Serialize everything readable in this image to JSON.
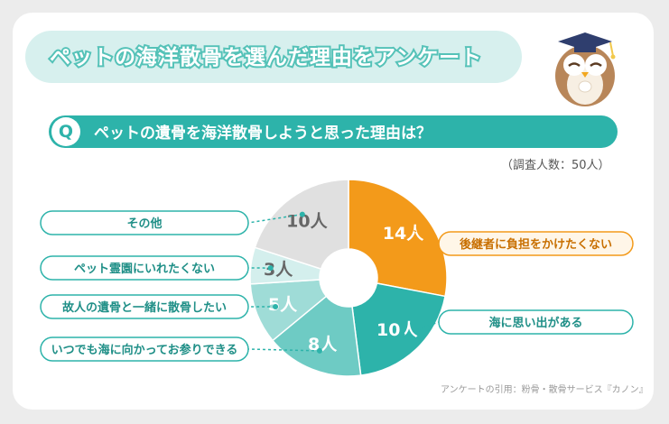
{
  "header": {
    "title": "ペットの海洋散骨を選んだ理由をアンケート"
  },
  "question": {
    "marker": "Q",
    "text": "ペットの遺骨を海洋散骨しようと思った理由は？"
  },
  "sample_note": "（調査人数：50人）",
  "source_note": "アンケートの引用：粉骨・散骨サービス『カノン』",
  "chart_data": {
    "type": "pie",
    "donut": true,
    "unit": "人",
    "total": 50,
    "slices": [
      {
        "label": "後継者に負担をかけたくない",
        "value": 14,
        "value_text": "14人",
        "color": "#f39a1a"
      },
      {
        "label": "海に思い出がある",
        "value": 10,
        "value_text": "10人",
        "color": "#2db3aa"
      },
      {
        "label": "いつでも海に向かってお参りできる",
        "value": 8,
        "value_text": "8人",
        "color": "#6ecbc4"
      },
      {
        "label": "故人の遺骨と一緒に散骨したい",
        "value": 5,
        "value_text": "5人",
        "color": "#9fdcd7"
      },
      {
        "label": "ペット霊園にいれたくない",
        "value": 3,
        "value_text": "3人",
        "color": "#d4efed"
      },
      {
        "label": "その他",
        "value": 10,
        "value_text": "10人",
        "color": "#e0e0e0"
      }
    ]
  },
  "colors": {
    "accent": "#2db3aa",
    "highlight": "#f39a1a",
    "title_pill": "#d7f0ee"
  },
  "icons": [
    "owl-mascot-icon",
    "graduation-cap-icon"
  ]
}
